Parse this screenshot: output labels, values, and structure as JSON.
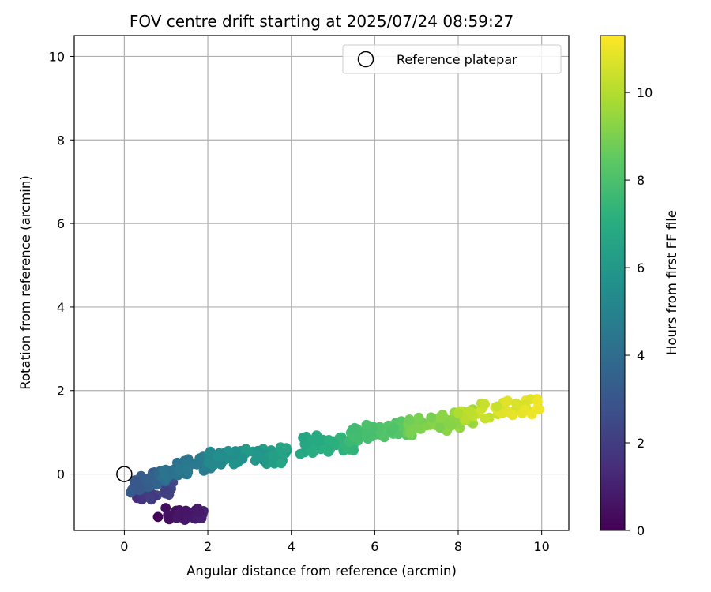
{
  "chart_data": {
    "type": "scatter",
    "title": "FOV centre drift starting at 2025/07/24 08:59:27",
    "xlabel": "Angular distance from reference (arcmin)",
    "ylabel": "Rotation from reference (arcmin)",
    "xlim": [
      -1.2,
      10.65
    ],
    "ylim": [
      -1.35,
      10.5
    ],
    "xticks": [
      0,
      2,
      4,
      6,
      8,
      10
    ],
    "yticks": [
      0,
      2,
      4,
      6,
      8,
      10
    ],
    "grid": true,
    "legend": {
      "placement": "top-right",
      "entries": [
        "Reference platepar"
      ]
    },
    "reference_point": {
      "name": "Reference platepar",
      "x": 0,
      "y": 0,
      "marker": "open-circle"
    },
    "colorbar": {
      "label": "Hours from first FF file",
      "colormap": "viridis",
      "range": [
        0,
        11.3
      ],
      "ticks": [
        0,
        2,
        4,
        6,
        8,
        10
      ]
    },
    "clusters": [
      {
        "h0": 0.0,
        "h1": 1.2,
        "x": [
          0.8,
          1.9
        ],
        "y0": -0.95,
        "slope": 0.0,
        "jy": 0.18,
        "n": 30
      },
      {
        "h0": 1.2,
        "h1": 2.8,
        "x": [
          0.3,
          1.3
        ],
        "y0": -0.45,
        "slope": 0.25,
        "jy": 0.25,
        "n": 35
      },
      {
        "h0": 2.8,
        "h1": 4.0,
        "x": [
          0.15,
          1.0
        ],
        "y0": -0.3,
        "slope": 0.35,
        "jy": 0.18,
        "n": 45
      },
      {
        "h0": 4.0,
        "h1": 5.0,
        "x": [
          0.9,
          2.2
        ],
        "y0": 0.05,
        "slope": 0.22,
        "jy": 0.2,
        "n": 35
      },
      {
        "h0": 5.0,
        "h1": 6.7,
        "x": [
          2.0,
          3.9
        ],
        "y0": 0.35,
        "slope": 0.06,
        "jy": 0.2,
        "n": 55
      },
      {
        "h0": 6.6,
        "h1": 7.6,
        "x": [
          4.2,
          5.6
        ],
        "y0": 0.7,
        "slope": 0.05,
        "jy": 0.22,
        "n": 50
      },
      {
        "h0": 7.6,
        "h1": 8.6,
        "x": [
          5.4,
          7.0
        ],
        "y0": 0.95,
        "slope": 0.12,
        "jy": 0.18,
        "n": 50
      },
      {
        "h0": 8.6,
        "h1": 9.8,
        "x": [
          6.7,
          8.4
        ],
        "y0": 1.1,
        "slope": 0.15,
        "jy": 0.22,
        "n": 50
      },
      {
        "h0": 9.8,
        "h1": 11.3,
        "x": [
          8.0,
          10.0
        ],
        "y0": 1.45,
        "slope": 0.1,
        "jy": 0.2,
        "n": 50
      }
    ]
  }
}
